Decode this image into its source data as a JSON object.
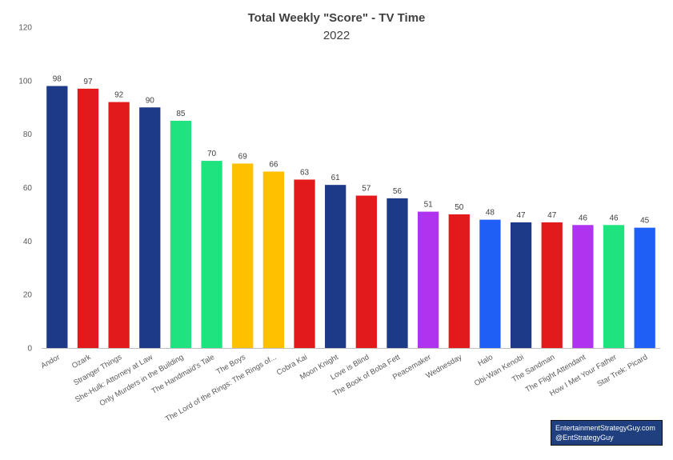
{
  "chart_data": {
    "type": "bar",
    "title": "Total Weekly \"Score\" - TV Time",
    "subtitle": "2022",
    "xlabel": "",
    "ylabel": "",
    "ylim": [
      0,
      120
    ],
    "yticks": [
      0,
      20,
      40,
      60,
      80,
      100,
      120
    ],
    "grid": false,
    "legend": "none",
    "categories": [
      "Andor",
      "Ozark",
      "Stranger Things",
      "She-Hulk: Attorney at Law",
      "Only Murders in the Building",
      "The Handmaid's Tale",
      "The Boys",
      "The Lord of the Rings: The Rings of...",
      "Cobra Kai",
      "Moon Knight",
      "Love is Blind",
      "The Book of Boba Fett",
      "Peacemaker",
      "Wednesday",
      "Halo",
      "Obi-Wan Kenobi",
      "The Sandman",
      "The Flight Attendant",
      "How I Met Your Father",
      "Star Trek: Picard"
    ],
    "values": [
      98,
      97,
      92,
      90,
      85,
      70,
      69,
      66,
      63,
      61,
      57,
      56,
      51,
      50,
      48,
      47,
      47,
      46,
      46,
      45
    ],
    "colors": [
      "#1c3a87",
      "#e31a1c",
      "#e31a1c",
      "#1c3a87",
      "#1ee37e",
      "#1ee37e",
      "#ffc000",
      "#ffc000",
      "#e31a1c",
      "#1c3a87",
      "#e31a1c",
      "#1c3a87",
      "#b033f0",
      "#e31a1c",
      "#1f5ff5",
      "#1c3a87",
      "#e31a1c",
      "#b033f0",
      "#1ee37e",
      "#1f5ff5"
    ]
  },
  "credit": {
    "line1": "EntertainmentStrategyGuy.com",
    "line2": "@EntStrategyGuy"
  }
}
